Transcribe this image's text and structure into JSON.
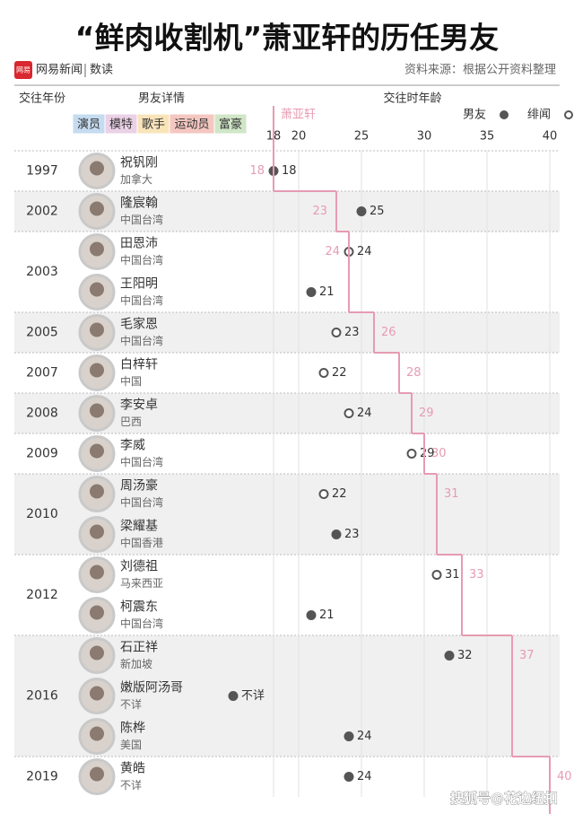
{
  "chart_data": {
    "type": "dot-timeline",
    "title": "“鲜肉收割机”萧亚轩的历任男友",
    "logo": "网易",
    "brand": "网易新闻",
    "brand_section": "数读",
    "source": "资料来源：根据公开资料整理",
    "header_year": "交往年份",
    "header_detail": "男友详情",
    "header_age": "交往时年龄",
    "occupation_legend": [
      {
        "label": "演员",
        "color": "#5b9bd5"
      },
      {
        "label": "模特",
        "color": "#c77dba"
      },
      {
        "label": "歌手",
        "color": "#f0b43c"
      },
      {
        "label": "运动员",
        "color": "#e0604e"
      },
      {
        "label": "富豪",
        "color": "#7cb860"
      }
    ],
    "years": [
      1997,
      2002,
      2003,
      null,
      2005,
      2007,
      2008,
      2009,
      2010,
      null,
      2012,
      null,
      2016,
      null,
      null,
      2019
    ],
    "names": [
      "祝钒刚",
      "隆宸翰",
      "田恩沛",
      "王阳明",
      "毛家恩",
      "白梓轩",
      "李安卓",
      "李威",
      "周汤豪",
      "梁耀基",
      "刘德祖",
      "柯震东",
      "石正祥",
      "嫩版阿汤哥",
      "陈桦",
      "黄皓"
    ],
    "origins": [
      "加拿大",
      "中国台湾",
      "中国台湾",
      "中国台湾",
      "中国台湾",
      "中国",
      "巴西",
      "中国台湾",
      "中国台湾",
      "中国香港",
      "马来西亚",
      "中国台湾",
      "新加坡",
      "不详",
      "美国",
      "不详"
    ],
    "xlim": [
      15,
      40
    ],
    "xticks": [
      18,
      20,
      25,
      30,
      35,
      40
    ],
    "series": [
      {
        "name": "男友",
        "color": "#555555",
        "style": "filled",
        "values": [
          18,
          25,
          null,
          21,
          null,
          null,
          null,
          null,
          null,
          23,
          null,
          21,
          32,
          null,
          24,
          24
        ],
        "value_labels": [
          null,
          null,
          null,
          null,
          null,
          null,
          null,
          null,
          null,
          null,
          null,
          null,
          null,
          "不详",
          null,
          null
        ]
      },
      {
        "name": "绯闻",
        "color": "#555555",
        "style": "hollow",
        "values": [
          null,
          null,
          24,
          null,
          23,
          22,
          24,
          29,
          22,
          null,
          31,
          null,
          null,
          null,
          null,
          null
        ]
      },
      {
        "name": "萧亚轩",
        "color": "#e79bb2",
        "style": "step",
        "values": [
          18,
          23,
          24,
          null,
          26,
          28,
          29,
          30,
          31,
          null,
          33,
          null,
          37,
          null,
          null,
          40
        ]
      }
    ],
    "watermark": "搜狐号@花边纽扣"
  }
}
